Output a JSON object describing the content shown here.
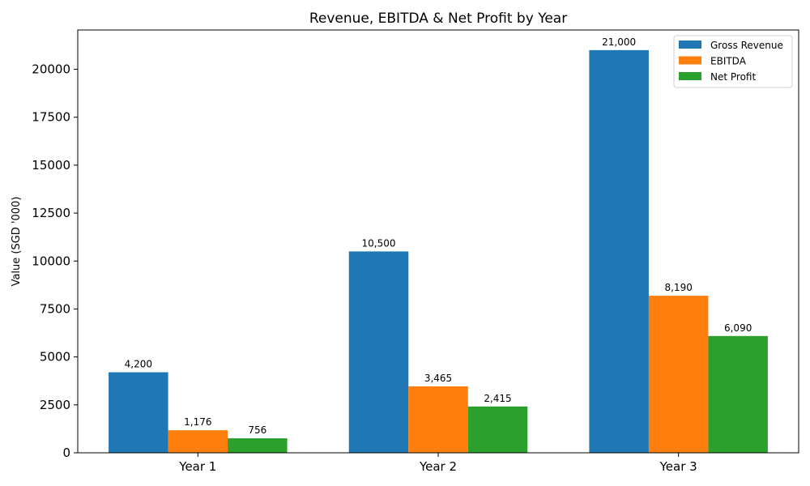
{
  "chart_data": {
    "type": "bar",
    "title": "Revenue, EBITDA & Net Profit by Year",
    "xlabel": "",
    "ylabel": "Value (SGD '000)",
    "categories": [
      "Year 1",
      "Year 2",
      "Year 3"
    ],
    "series": [
      {
        "name": "Gross Revenue",
        "color": "#1f77b4",
        "values": [
          4200,
          10500,
          21000
        ],
        "labels": [
          "4,200",
          "10,500",
          "21,000"
        ]
      },
      {
        "name": "EBITDA",
        "color": "#ff7f0e",
        "values": [
          1176,
          3465,
          8190
        ],
        "labels": [
          "1,176",
          "3,465",
          "8,190"
        ]
      },
      {
        "name": "Net Profit",
        "color": "#2ca02c",
        "values": [
          756,
          2415,
          6090
        ],
        "labels": [
          "756",
          "2,415",
          "6,090"
        ]
      }
    ],
    "ylim": [
      0,
      22050
    ],
    "yticks": [
      0,
      2500,
      5000,
      7500,
      10000,
      12500,
      15000,
      17500,
      20000
    ],
    "ytick_labels": [
      "0",
      "2500",
      "5000",
      "7500",
      "10000",
      "12500",
      "15000",
      "17500",
      "20000"
    ],
    "grid": false,
    "legend_position": "top-right"
  }
}
